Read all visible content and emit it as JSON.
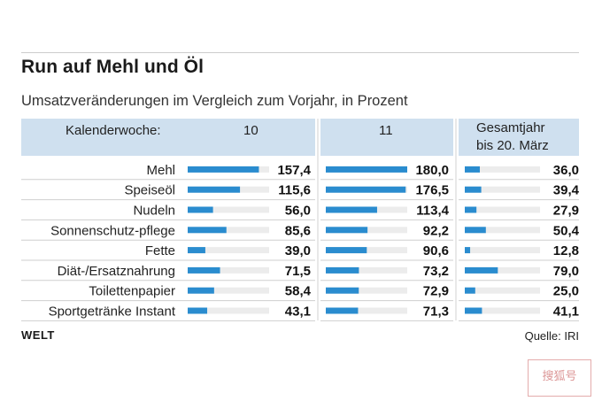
{
  "title": "Run auf Mehl und Öl",
  "subtitle": "Umsatzveränderungen im Vergleich zum Vorjahr, in Prozent",
  "source": "Quelle: IRI",
  "brand": "WELT",
  "stamp_text": "搜狐号",
  "colors": {
    "bar": "#2a8ccf",
    "track": "#ececec",
    "header_bg": "#cfe0ef"
  },
  "chart_data": {
    "type": "bar",
    "orientation": "horizontal",
    "title": "Run auf Mehl und Öl",
    "subtitle": "Umsatzveränderungen im Vergleich zum Vorjahr, in Prozent",
    "row_header": "Kalenderwoche:",
    "categories": [
      "Mehl",
      "Speiseöl",
      "Nudeln",
      "Sonnenschutz-pflege",
      "Fette",
      "Diät-/Ersatznahrung",
      "Toilettenpapier",
      "Sportgetränke Instant"
    ],
    "series": [
      {
        "name": "10",
        "values": [
          157.4,
          115.6,
          56.0,
          85.6,
          39.0,
          71.5,
          58.4,
          43.1
        ],
        "xlim": [
          0,
          180
        ]
      },
      {
        "name": "11",
        "values": [
          180.0,
          176.5,
          113.4,
          92.2,
          90.6,
          73.2,
          72.9,
          71.3
        ],
        "xlim": [
          0,
          180
        ]
      },
      {
        "name": "Gesamtjahr bis 20. März",
        "values": [
          36.0,
          39.4,
          27.9,
          50.4,
          12.8,
          79.0,
          25.0,
          41.1
        ],
        "xlim": [
          0,
          180
        ]
      }
    ],
    "header_lines": [
      [
        "10"
      ],
      [
        "11"
      ],
      [
        "Gesamtjahr",
        "bis 20. März"
      ]
    ]
  }
}
